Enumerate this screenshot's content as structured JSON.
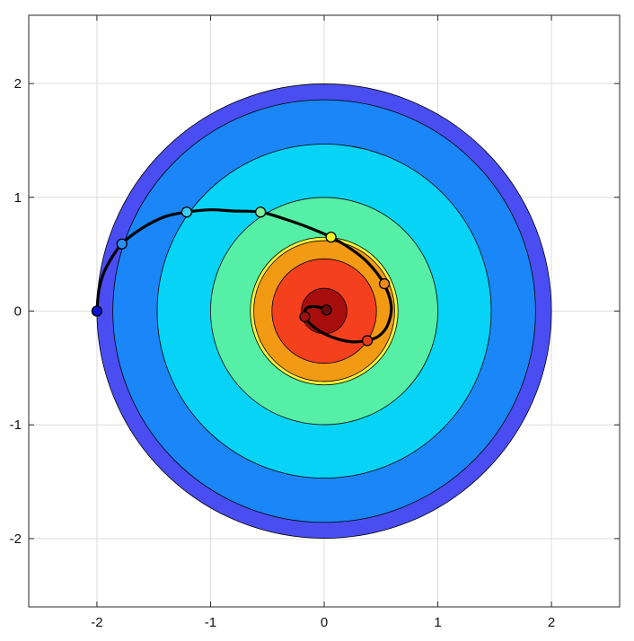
{
  "chart_data": {
    "type": "filled-contour-with-trajectory",
    "title": "",
    "xlabel": "",
    "ylabel": "",
    "xlim": [
      -2.6,
      2.6
    ],
    "ylim": [
      -2.6,
      2.6
    ],
    "grid": true,
    "legend": "none",
    "x_ticks": [
      {
        "value": -2,
        "label": "-2"
      },
      {
        "value": -1,
        "label": "-1"
      },
      {
        "value": 0,
        "label": "0"
      },
      {
        "value": 1,
        "label": "1"
      },
      {
        "value": 2,
        "label": "2"
      }
    ],
    "y_ticks": [
      {
        "value": -2,
        "label": "-2"
      },
      {
        "value": -1,
        "label": "-1"
      },
      {
        "value": 0,
        "label": "0"
      },
      {
        "value": 1,
        "label": "1"
      },
      {
        "value": 2,
        "label": "2"
      }
    ],
    "contour_levels": [
      {
        "radius": 2.0,
        "color": "#4a4ef2"
      },
      {
        "radius": 1.86,
        "color": "#1a86f8"
      },
      {
        "radius": 1.47,
        "color": "#06d3f5"
      },
      {
        "radius": 1.0,
        "color": "#55f0a5"
      },
      {
        "radius": 0.65,
        "color": "#f7f33a"
      },
      {
        "radius": 0.62,
        "color": "#f39a15"
      },
      {
        "radius": 0.46,
        "color": "#f5401e"
      },
      {
        "radius": 0.2,
        "color": "#a80f0c"
      }
    ],
    "trajectory": {
      "color": "#000000",
      "points": [
        [
          -2.0,
          0.0
        ],
        [
          -1.98,
          0.2
        ],
        [
          -1.92,
          0.38
        ],
        [
          -1.78,
          0.59
        ],
        [
          -1.6,
          0.73
        ],
        [
          -1.4,
          0.83
        ],
        [
          -1.21,
          0.87
        ],
        [
          -1.0,
          0.89
        ],
        [
          -0.8,
          0.88
        ],
        [
          -0.56,
          0.87
        ],
        [
          -0.35,
          0.81
        ],
        [
          -0.15,
          0.74
        ],
        [
          0.06,
          0.65
        ],
        [
          0.23,
          0.55
        ],
        [
          0.38,
          0.43
        ],
        [
          0.52,
          0.25
        ],
        [
          0.59,
          0.05
        ],
        [
          0.56,
          -0.12
        ],
        [
          0.48,
          -0.22
        ],
        [
          0.37,
          -0.26
        ],
        [
          0.24,
          -0.27
        ],
        [
          0.1,
          -0.24
        ],
        [
          -0.05,
          -0.17
        ],
        [
          -0.17,
          -0.06
        ],
        [
          -0.16,
          0.02
        ],
        [
          -0.1,
          0.04
        ],
        [
          -0.03,
          0.03
        ],
        [
          0.01,
          0.01
        ],
        [
          0.0,
          0.0
        ]
      ]
    },
    "markers": [
      {
        "x": -2.0,
        "y": 0.0,
        "color": "#0a14d2"
      },
      {
        "x": -1.78,
        "y": 0.59,
        "color": "#2e8ef2"
      },
      {
        "x": -1.21,
        "y": 0.87,
        "color": "#3ad0f4"
      },
      {
        "x": -0.56,
        "y": 0.87,
        "color": "#7cf29a"
      },
      {
        "x": 0.06,
        "y": 0.65,
        "color": "#f2f21e"
      },
      {
        "x": 0.53,
        "y": 0.24,
        "color": "#f08a18"
      },
      {
        "x": 0.38,
        "y": -0.26,
        "color": "#ee3b17"
      },
      {
        "x": -0.17,
        "y": -0.05,
        "color": "#a21010"
      },
      {
        "x": 0.02,
        "y": 0.01,
        "color": "#6b0a0a"
      }
    ]
  }
}
